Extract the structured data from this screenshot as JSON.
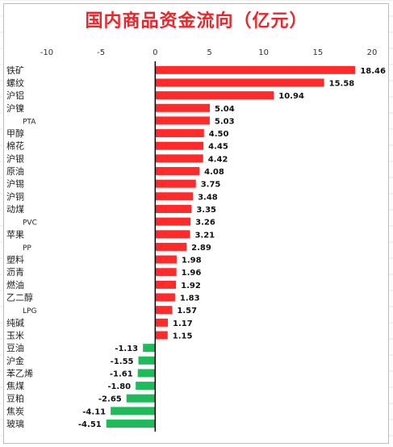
{
  "chart_data": {
    "type": "bar",
    "orientation": "horizontal",
    "title": "国内商品资金流向（亿元）",
    "xlim": [
      -10,
      20
    ],
    "xticks": [
      -10,
      -5,
      0,
      5,
      10,
      15,
      20
    ],
    "x_axis_position": "top",
    "grid": false,
    "legend": "none",
    "colors": {
      "positive": "#ff2b2b",
      "negative": "#1fba5a",
      "title": "#e8262b"
    },
    "categories": [
      "铁矿",
      "螺纹",
      "沪铝",
      "沪镍",
      "PTA",
      "甲醇",
      "棉花",
      "沪银",
      "原油",
      "沪锡",
      "沪铜",
      "动煤",
      "PVC",
      "苹果",
      "PP",
      "塑料",
      "沥青",
      "燃油",
      "乙二醇",
      "LPG",
      "纯碱",
      "玉米",
      "豆油",
      "沪金",
      "苯乙烯",
      "焦煤",
      "豆粕",
      "焦炭",
      "玻璃"
    ],
    "values": [
      18.46,
      15.58,
      10.94,
      5.04,
      5.03,
      4.5,
      4.45,
      4.42,
      4.08,
      3.75,
      3.48,
      3.35,
      3.26,
      3.21,
      2.89,
      1.98,
      1.96,
      1.92,
      1.83,
      1.57,
      1.17,
      1.15,
      -1.13,
      -1.55,
      -1.61,
      -1.8,
      -2.65,
      -4.11,
      -4.51
    ],
    "value_labels": [
      "18.46",
      "15.58",
      "10.94",
      "5.04",
      "5.03",
      "4.50",
      "4.45",
      "4.42",
      "4.08",
      "3.75",
      "3.48",
      "3.35",
      "3.26",
      "3.21",
      "2.89",
      "1.98",
      "1.96",
      "1.92",
      "1.83",
      "1.57",
      "1.17",
      "1.15",
      "-1.13",
      "-1.55",
      "-1.61",
      "-1.80",
      "-2.65",
      "-4.11",
      "-4.51"
    ]
  }
}
